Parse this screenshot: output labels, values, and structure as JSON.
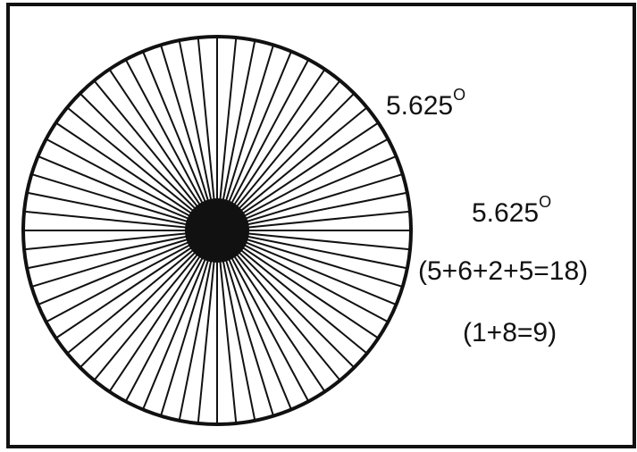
{
  "labels": [
    {
      "text": "5.625",
      "superscript": "O"
    },
    {
      "text": "5.625",
      "superscript": "O"
    }
  ],
  "sums": [
    "(5+6+2+5=18)",
    "(1+8=9)"
  ]
}
